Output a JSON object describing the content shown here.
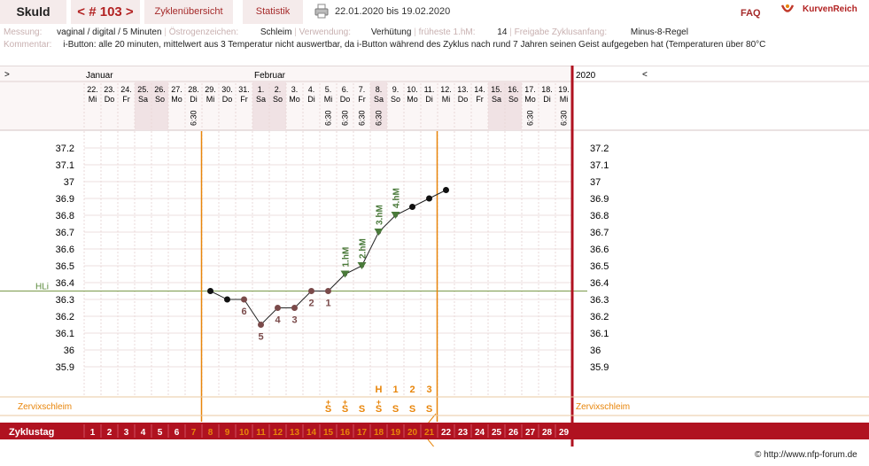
{
  "header": {
    "title": "Skuld",
    "cycle_nav": "< # 103 >",
    "tab_overview": "Zyklenübersicht",
    "tab_stats": "Statistik",
    "date_range": "22.01.2020 bis 19.02.2020",
    "faq": "FAQ",
    "brand": "KurvenReich"
  },
  "info": {
    "messung_label": "Messung:",
    "messung_value": "vaginal / digital / 5 Minuten",
    "oestrogen_label": "Östrogenzeichen:",
    "oestrogen_value": "Schleim",
    "verwendung_label": "Verwendung:",
    "verwendung_value": "Verhütung",
    "hm_label": "früheste 1.hM:",
    "hm_value": "14",
    "freigabe_label": "Freigabe Zyklusanfang:",
    "freigabe_value": "Minus-8-Regel",
    "kommentar_label": "Kommentar:",
    "kommentar_value": "i-Button: alle 20 minuten, mittelwert aus 3  Temperatur nicht auswertbar, da i-Button während des Zyklus nach rund 7 Jahren seinen Geist aufgegeben hat (Temperaturen über 80°C"
  },
  "chart_data": {
    "type": "line",
    "year": "2020",
    "months": [
      {
        "label": "Januar",
        "day_index": 0
      },
      {
        "label": "Februar",
        "day_index": 10
      }
    ],
    "days": [
      {
        "d": "22.",
        "w": "Mi"
      },
      {
        "d": "23.",
        "w": "Do"
      },
      {
        "d": "24.",
        "w": "Fr"
      },
      {
        "d": "25.",
        "w": "Sa"
      },
      {
        "d": "26.",
        "w": "So"
      },
      {
        "d": "27.",
        "w": "Mo"
      },
      {
        "d": "28.",
        "w": "Di"
      },
      {
        "d": "29.",
        "w": "Mi"
      },
      {
        "d": "30.",
        "w": "Do"
      },
      {
        "d": "31.",
        "w": "Fr"
      },
      {
        "d": "1.",
        "w": "Sa"
      },
      {
        "d": "2.",
        "w": "So"
      },
      {
        "d": "3.",
        "w": "Mo"
      },
      {
        "d": "4.",
        "w": "Di"
      },
      {
        "d": "5.",
        "w": "Mi"
      },
      {
        "d": "6.",
        "w": "Do"
      },
      {
        "d": "7.",
        "w": "Fr"
      },
      {
        "d": "8.",
        "w": "Sa"
      },
      {
        "d": "9.",
        "w": "So"
      },
      {
        "d": "10.",
        "w": "Mo"
      },
      {
        "d": "11.",
        "w": "Di"
      },
      {
        "d": "12.",
        "w": "Mi"
      },
      {
        "d": "13.",
        "w": "Do"
      },
      {
        "d": "14.",
        "w": "Fr"
      },
      {
        "d": "15.",
        "w": "Sa"
      },
      {
        "d": "16.",
        "w": "So"
      },
      {
        "d": "17.",
        "w": "Mo"
      },
      {
        "d": "18.",
        "w": "Di"
      },
      {
        "d": "19.",
        "w": "Mi"
      }
    ],
    "weekend_days": [
      3,
      4,
      10,
      11,
      17,
      24,
      25
    ],
    "times": [
      {
        "day": 6,
        "t": "6:30"
      },
      {
        "day": 14,
        "t": "6:30"
      },
      {
        "day": 15,
        "t": "6:30"
      },
      {
        "day": 16,
        "t": "6:30"
      },
      {
        "day": 17,
        "t": "6:30"
      },
      {
        "day": 26,
        "t": "6:30"
      },
      {
        "day": 28,
        "t": "6:30"
      }
    ],
    "y_ticks": [
      "37.2",
      "37.1",
      "37",
      "36.9",
      "36.8",
      "36.7",
      "36.6",
      "36.5",
      "36.4",
      "36.3",
      "36.2",
      "36.1",
      "36",
      "35.9"
    ],
    "ylim": [
      35.8,
      37.3
    ],
    "hl_label": "HLi",
    "hl_value": 36.35,
    "temps": [
      {
        "day": 7,
        "v": 36.35,
        "c": "#111"
      },
      {
        "day": 8,
        "v": 36.3,
        "c": "#111"
      },
      {
        "day": 9,
        "v": 36.3,
        "c": "#7a4a4a",
        "n": "6"
      },
      {
        "day": 10,
        "v": 36.15,
        "c": "#7a4a4a",
        "n": "5"
      },
      {
        "day": 11,
        "v": 36.25,
        "c": "#7a4a4a",
        "n": "4"
      },
      {
        "day": 12,
        "v": 36.25,
        "c": "#7a4a4a",
        "n": "3"
      },
      {
        "day": 13,
        "v": 36.35,
        "c": "#7a4a4a",
        "n": "2"
      },
      {
        "day": 14,
        "v": 36.35,
        "c": "#7a4a4a",
        "n": "1"
      },
      {
        "day": 15,
        "v": 36.45,
        "c": "#4a7a3a",
        "tri": "1.hM"
      },
      {
        "day": 16,
        "v": 36.5,
        "c": "#4a7a3a",
        "tri": "2.hM"
      },
      {
        "day": 17,
        "v": 36.7,
        "c": "#4a7a3a",
        "tri": "3.hM"
      },
      {
        "day": 18,
        "v": 36.8,
        "c": "#4a7a3a",
        "tri": "4.hM"
      },
      {
        "day": 19,
        "v": 36.85,
        "c": "#111"
      },
      {
        "day": 20,
        "v": 36.9,
        "c": "#111"
      },
      {
        "day": 21,
        "v": 36.95,
        "c": "#111"
      }
    ],
    "vlines": [
      6,
      20
    ],
    "mucus_label": "Zervixschleim",
    "mucus": [
      {
        "day": 14,
        "s": "S",
        "plus": true
      },
      {
        "day": 15,
        "s": "S",
        "plus": true
      },
      {
        "day": 16,
        "s": "S"
      },
      {
        "day": 17,
        "s": "S",
        "plus": true,
        "top": "H"
      },
      {
        "day": 18,
        "s": "S",
        "top": "1"
      },
      {
        "day": 19,
        "s": "S",
        "top": "2"
      },
      {
        "day": 20,
        "s": "S",
        "top": "3"
      }
    ],
    "zyklustag_label": "Zyklustag",
    "cycle_days": [
      "1",
      "2",
      "3",
      "4",
      "5",
      "6",
      "7",
      "8",
      "9",
      "10",
      "11",
      "12",
      "13",
      "14",
      "15",
      "16",
      "17",
      "18",
      "19",
      "20",
      "21",
      "22",
      "23",
      "24",
      "25",
      "26",
      "27",
      "28",
      "29"
    ],
    "colors": {
      "accent": "#b01220",
      "orange": "#e8850a",
      "green": "#4a7a3a",
      "grid": "#e6d4d4",
      "weekend": "#f0e2e4"
    }
  },
  "footer": "© http://www.nfp-forum.de"
}
